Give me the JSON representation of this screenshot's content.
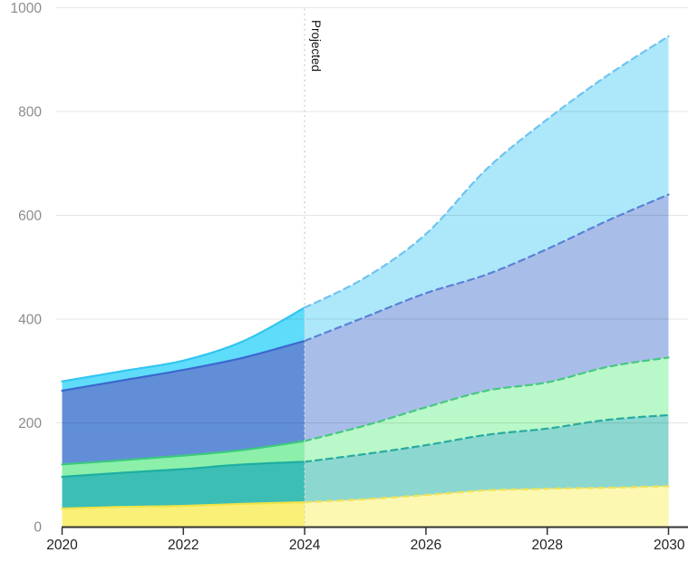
{
  "chart_data": {
    "type": "area",
    "stacked": true,
    "title": "",
    "x": [
      2020,
      2021,
      2022,
      2023,
      2024,
      2025,
      2026,
      2027,
      2028,
      2029,
      2030
    ],
    "x_ticks": [
      2020,
      2022,
      2024,
      2026,
      2028,
      2030
    ],
    "x_tick_labels": [
      "2020",
      "2022",
      "2024",
      "2026",
      "2028",
      "2030"
    ],
    "y_ticks": [
      0,
      200,
      400,
      600,
      800,
      1000
    ],
    "y_tick_labels": [
      "0",
      "200",
      "400",
      "600",
      "800",
      "1000"
    ],
    "xlim": [
      2020,
      2030
    ],
    "ylim": [
      0,
      1000
    ],
    "grid": true,
    "legend": false,
    "projection": {
      "start_x": 2024,
      "label": "Projected"
    },
    "series": [
      {
        "name": "yellow",
        "values": [
          35,
          38,
          40,
          44,
          47,
          53,
          61,
          70,
          73,
          75,
          78
        ],
        "fill": "#FAF078",
        "fill_projected": "#FCF8B2",
        "line": "#F2E348",
        "line_projected": "#EFE35A"
      },
      {
        "name": "teal",
        "values": [
          61,
          66,
          71,
          76,
          78,
          87,
          96,
          107,
          116,
          131,
          137
        ],
        "fill": "#3CBEB4",
        "fill_projected": "#8CD8D0",
        "line": "#1FAEA3",
        "line_projected": "#28AAA0"
      },
      {
        "name": "green",
        "values": [
          24,
          24,
          26,
          28,
          40,
          55,
          73,
          85,
          89,
          102,
          111
        ],
        "fill": "#8CF0AA",
        "fill_projected": "#B9F8C8",
        "line": "#3CC97E",
        "line_projected": "#46C882"
      },
      {
        "name": "blue",
        "values": [
          142,
          154,
          165,
          178,
          193,
          209,
          220,
          224,
          257,
          282,
          314
        ],
        "fill": "#628ED8",
        "fill_projected": "#A8BEE8",
        "line": "#3B68CE",
        "line_projected": "#5A82D7"
      },
      {
        "name": "light-blue",
        "values": [
          18,
          18,
          18,
          32,
          64,
          76,
          114,
          203,
          250,
          280,
          305
        ],
        "fill": "#5FDCFA",
        "fill_projected": "#ACE8FA",
        "line": "#32C5F2",
        "line_projected": "#6EC3F0"
      }
    ],
    "style": {
      "x_label_color": "#222222",
      "y_label_color": "#8C8C8C",
      "axis_color": "#333333",
      "grid_color": "rgba(0,0,0,0.10)",
      "divider_color": "#D4D4D4",
      "projected_label_color": "#111111"
    }
  }
}
